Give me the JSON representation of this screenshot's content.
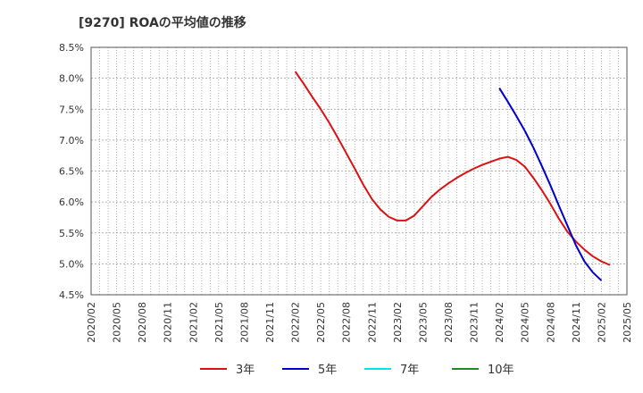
{
  "title": "[9270]  ROAの平均値の推移",
  "chart_data": {
    "type": "line",
    "title": "[9270]  ROAの平均値の推移",
    "xlabel": "",
    "ylabel": "",
    "ylim": [
      4.5,
      8.5
    ],
    "yticks": [
      "4.5%",
      "5.0%",
      "5.5%",
      "6.0%",
      "6.5%",
      "7.0%",
      "7.5%",
      "8.0%",
      "8.5%"
    ],
    "xticks": [
      "2020/02",
      "2020/05",
      "2020/08",
      "2020/11",
      "2021/02",
      "2021/05",
      "2021/08",
      "2021/11",
      "2022/02",
      "2022/05",
      "2022/08",
      "2022/11",
      "2023/02",
      "2023/05",
      "2023/08",
      "2023/11",
      "2024/02",
      "2024/05",
      "2024/08",
      "2024/11",
      "2025/02",
      "2025/05"
    ],
    "grid": true,
    "legend_position": "bottom",
    "series": [
      {
        "name": "3年",
        "color": "#dd1111",
        "points": [
          [
            "2022/02",
            8.11
          ],
          [
            "2022/03",
            7.91
          ],
          [
            "2022/04",
            7.7
          ],
          [
            "2022/05",
            7.5
          ],
          [
            "2022/06",
            7.28
          ],
          [
            "2022/07",
            7.04
          ],
          [
            "2022/08",
            6.79
          ],
          [
            "2022/09",
            6.54
          ],
          [
            "2022/10",
            6.28
          ],
          [
            "2022/11",
            6.05
          ],
          [
            "2022/12",
            5.88
          ],
          [
            "2023/01",
            5.76
          ],
          [
            "2023/02",
            5.7
          ],
          [
            "2023/03",
            5.7
          ],
          [
            "2023/04",
            5.78
          ],
          [
            "2023/05",
            5.93
          ],
          [
            "2023/06",
            6.08
          ],
          [
            "2023/07",
            6.2
          ],
          [
            "2023/08",
            6.3
          ],
          [
            "2023/09",
            6.39
          ],
          [
            "2023/10",
            6.47
          ],
          [
            "2023/11",
            6.54
          ],
          [
            "2023/12",
            6.6
          ],
          [
            "2024/01",
            6.65
          ],
          [
            "2024/02",
            6.7
          ],
          [
            "2024/03",
            6.73
          ],
          [
            "2024/04",
            6.68
          ],
          [
            "2024/05",
            6.57
          ],
          [
            "2024/06",
            6.39
          ],
          [
            "2024/07",
            6.19
          ],
          [
            "2024/08",
            5.97
          ],
          [
            "2024/09",
            5.73
          ],
          [
            "2024/10",
            5.52
          ],
          [
            "2024/11",
            5.36
          ],
          [
            "2024/12",
            5.23
          ],
          [
            "2025/01",
            5.12
          ],
          [
            "2025/02",
            5.04
          ],
          [
            "2025/03",
            4.98
          ]
        ]
      },
      {
        "name": "5年",
        "color": "#0000cc",
        "points": [
          [
            "2024/02",
            7.84
          ],
          [
            "2024/03",
            7.62
          ],
          [
            "2024/04",
            7.39
          ],
          [
            "2024/05",
            7.15
          ],
          [
            "2024/06",
            6.88
          ],
          [
            "2024/07",
            6.58
          ],
          [
            "2024/08",
            6.27
          ],
          [
            "2024/09",
            5.94
          ],
          [
            "2024/10",
            5.62
          ],
          [
            "2024/11",
            5.3
          ],
          [
            "2024/12",
            5.04
          ],
          [
            "2025/01",
            4.86
          ],
          [
            "2025/02",
            4.73
          ]
        ]
      },
      {
        "name": "7年",
        "color": "#00e5ee",
        "points": []
      },
      {
        "name": "10年",
        "color": "#228822",
        "points": []
      }
    ]
  }
}
